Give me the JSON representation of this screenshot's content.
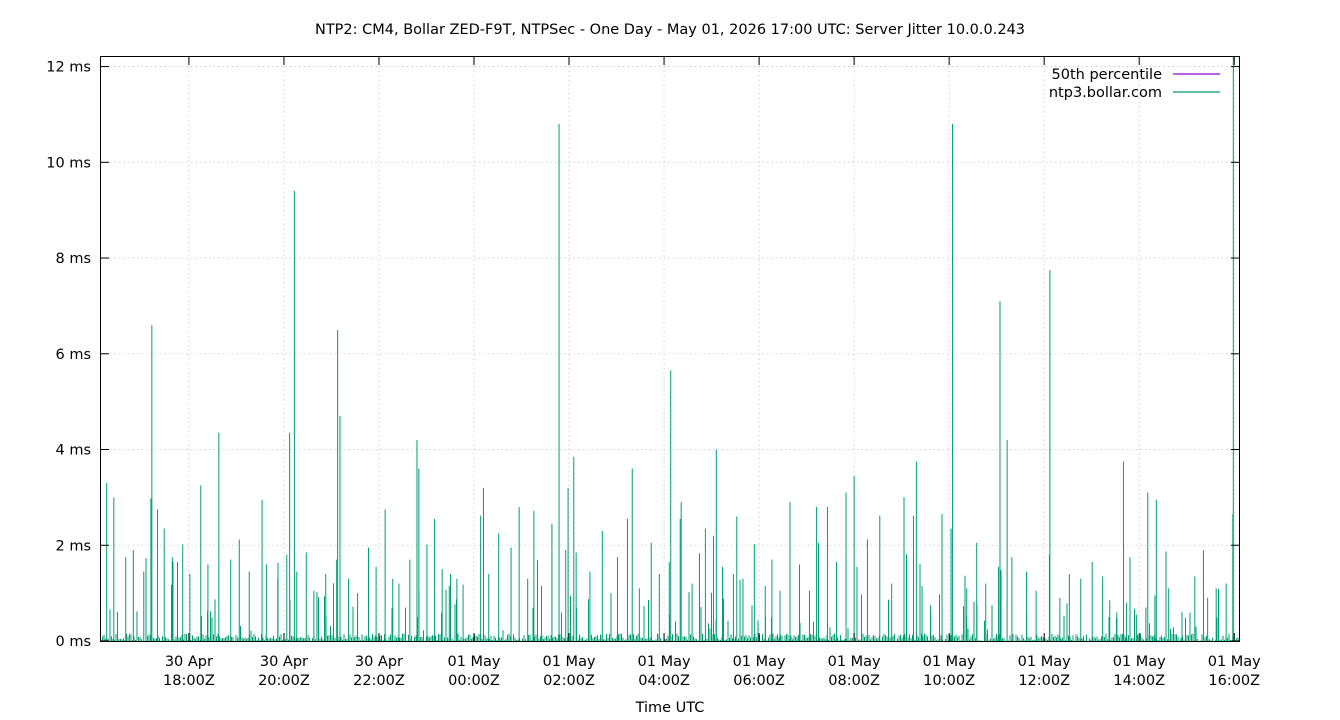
{
  "chart_data": {
    "type": "line",
    "title": "NTP2: CM4, Bollar ZED-F9T, NTPSec - One Day - May 01, 2026 17:00 UTC: Server Jitter 10.0.0.243",
    "xlabel": "Time UTC",
    "ylabel": "",
    "x_range_hours": [
      -7.85,
      16.1
    ],
    "ylim": [
      0,
      12.2
    ],
    "y_ticks": [
      {
        "value": 0,
        "label": "0 ms"
      },
      {
        "value": 2,
        "label": "2 ms"
      },
      {
        "value": 4,
        "label": "4 ms"
      },
      {
        "value": 6,
        "label": "6 ms"
      },
      {
        "value": 8,
        "label": "8 ms"
      },
      {
        "value": 10,
        "label": "10 ms"
      },
      {
        "value": 12,
        "label": "12 ms"
      }
    ],
    "x_ticks": [
      {
        "value": -6,
        "line1": "30 Apr",
        "line2": "18:00Z"
      },
      {
        "value": -4,
        "line1": "30 Apr",
        "line2": "20:00Z"
      },
      {
        "value": -2,
        "line1": "30 Apr",
        "line2": "22:00Z"
      },
      {
        "value": 0,
        "line1": "01 May",
        "line2": "00:00Z"
      },
      {
        "value": 2,
        "line1": "01 May",
        "line2": "02:00Z"
      },
      {
        "value": 4,
        "line1": "01 May",
        "line2": "04:00Z"
      },
      {
        "value": 6,
        "line1": "01 May",
        "line2": "06:00Z"
      },
      {
        "value": 8,
        "line1": "01 May",
        "line2": "08:00Z"
      },
      {
        "value": 10,
        "line1": "01 May",
        "line2": "10:00Z"
      },
      {
        "value": 12,
        "line1": "01 May",
        "line2": "12:00Z"
      },
      {
        "value": 14,
        "line1": "01 May",
        "line2": "14:00Z"
      },
      {
        "value": 16,
        "line1": "01 May",
        "line2": "16:00Z"
      }
    ],
    "grid": true,
    "legend_position": "top-right",
    "series": [
      {
        "name": "50th percentile",
        "color": "#9400d3",
        "values": []
      },
      {
        "name": "ntp3.bollar.com",
        "color": "#009e73",
        "x": [
          -7.73,
          -7.58,
          -7.33,
          -7.17,
          -6.95,
          -6.8,
          -6.66,
          -6.52,
          -6.35,
          -6.13,
          -5.98,
          -5.75,
          -5.6,
          -5.37,
          -5.12,
          -4.94,
          -4.73,
          -4.46,
          -4.37,
          -4.13,
          -3.94,
          -3.73,
          -3.53,
          -3.37,
          -3.12,
          -2.89,
          -2.64,
          -2.45,
          -2.22,
          -2.06,
          -1.87,
          -1.71,
          -1.58,
          -1.35,
          -1.16,
          -0.99,
          -0.83,
          -0.67,
          -0.52,
          -0.36,
          -0.23,
          0.14,
          0.31,
          0.52,
          0.78,
          0.95,
          1.13,
          1.26,
          1.42,
          1.64,
          1.93,
          2.15,
          2.44,
          2.7,
          3.02,
          3.23,
          3.48,
          3.73,
          3.9,
          4.11,
          4.36,
          4.59,
          4.87,
          5.04,
          5.23,
          5.46,
          5.66,
          5.9,
          6.13,
          6.27,
          6.44,
          6.65,
          6.85,
          7.06,
          7.25,
          7.44,
          7.63,
          7.83,
          8.06,
          8.28,
          8.54,
          8.79,
          9.05,
          9.25,
          9.43,
          9.61,
          9.85,
          10.04,
          10.37,
          10.58,
          10.77,
          11.04,
          11.32,
          11.63,
          11.83,
          12.11,
          12.33,
          12.53,
          12.77,
          13.01,
          13.23,
          13.38,
          13.53,
          13.73,
          13.94,
          14.14,
          14.33,
          14.62,
          14.9,
          15.17,
          15.44,
          15.62,
          15.83,
          15.97
        ],
        "values": [
          3.3,
          3.0,
          1.75,
          1.9,
          1.45,
          2.98,
          2.75,
          2.35,
          1.75,
          2.02,
          1.4,
          3.25,
          1.6,
          4.35,
          1.7,
          2.12,
          1.45,
          2.95,
          1.6,
          1.3,
          1.8,
          1.45,
          1.85,
          1.05,
          1.4,
          1.7,
          1.3,
          1.0,
          1.95,
          1.55,
          2.75,
          1.3,
          1.2,
          1.7,
          3.6,
          2.02,
          2.55,
          1.5,
          1.15,
          1.3,
          1.18,
          2.62,
          1.4,
          2.25,
          1.95,
          2.8,
          1.3,
          2.72,
          1.15,
          2.45,
          1.9,
          1.85,
          1.45,
          2.3,
          1.75,
          2.55,
          1.1,
          2.05,
          1.4,
          1.65,
          2.9,
          1.2,
          2.35,
          2.2,
          1.55,
          1.4,
          1.3,
          2.02,
          1.15,
          1.7,
          1.05,
          2.9,
          1.6,
          1.05,
          2.05,
          2.8,
          1.65,
          3.1,
          1.55,
          2.12,
          2.62,
          1.2,
          3.0,
          2.62,
          1.15,
          0.75,
          2.65,
          2.35,
          1.1,
          2.05,
          1.2,
          1.55,
          1.75,
          1.45,
          1.05,
          1.8,
          0.9,
          1.4,
          1.3,
          1.65,
          1.35,
          0.85,
          0.6,
          0.8,
          0.55,
          0.7,
          0.95,
          1.1,
          0.6,
          1.35,
          0.9,
          1.1,
          1.2,
          2.65
        ],
        "spikes_x": [
          -6.78,
          -3.78,
          -3.88,
          -2.87,
          -2.82,
          -1.2,
          0.2,
          1.79,
          2.1,
          4.14,
          4.34,
          5.1,
          8.0,
          9.31,
          10.07,
          11.07,
          11.22,
          12.12,
          13.67,
          14.18,
          15.98,
          1.98,
          3.33,
          5.53,
          7.21,
          14.36
        ],
        "spikes_values": [
          6.6,
          9.4,
          4.35,
          6.5,
          4.7,
          4.2,
          3.2,
          10.8,
          3.85,
          5.65,
          2.55,
          4.0,
          3.45,
          3.75,
          10.8,
          7.1,
          4.2,
          7.75,
          3.75,
          3.1,
          12.5,
          3.2,
          3.6,
          2.6,
          2.8,
          2.95
        ]
      }
    ]
  }
}
